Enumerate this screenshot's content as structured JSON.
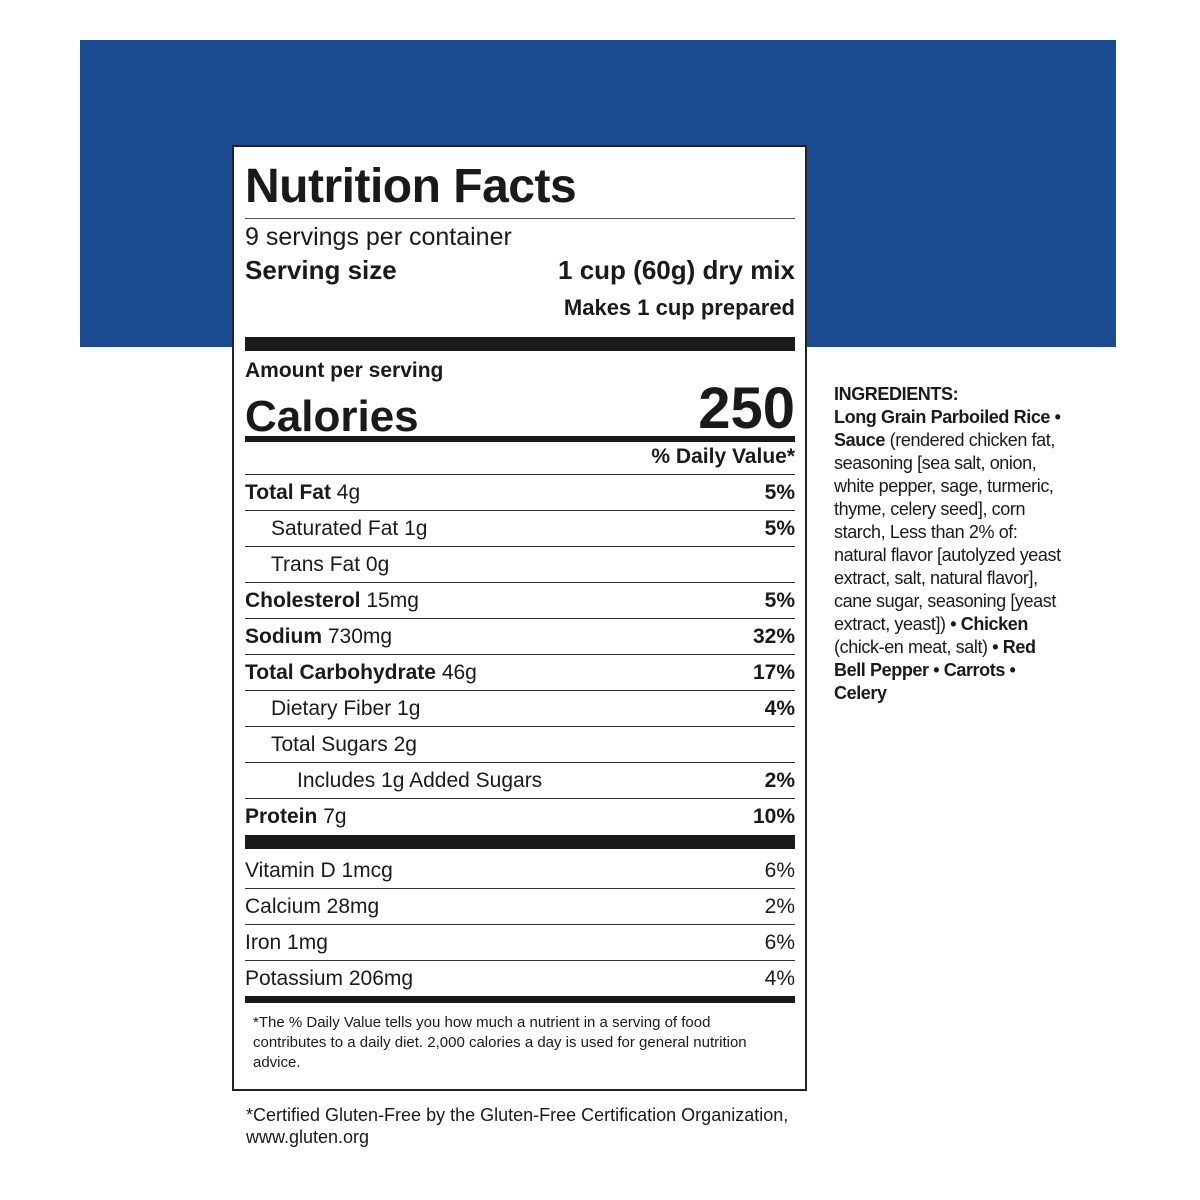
{
  "colors": {
    "banner": "#1a4a8f",
    "text": "#1a1a1a"
  },
  "label": {
    "title": "Nutrition Facts",
    "servings": "9 servings per container",
    "serving_size_label": "Serving size",
    "serving_size_value": "1 cup (60g) dry mix",
    "makes": "Makes 1 cup prepared",
    "amount_per_serving": "Amount per serving",
    "calories_label": "Calories",
    "calories_value": "250",
    "daily_value_header": "% Daily Value*",
    "nutrients": [
      {
        "name": "Total Fat",
        "amount": "4g",
        "dv": "5%",
        "bold": true,
        "indent": 0
      },
      {
        "name": "Saturated Fat",
        "amount": "1g",
        "dv": "5%",
        "bold": false,
        "indent": 1
      },
      {
        "name": "Trans Fat",
        "amount": "0g",
        "dv": "",
        "bold": false,
        "indent": 1
      },
      {
        "name": "Cholesterol",
        "amount": "15mg",
        "dv": "5%",
        "bold": true,
        "indent": 0
      },
      {
        "name": "Sodium",
        "amount": "730mg",
        "dv": "32%",
        "bold": true,
        "indent": 0
      },
      {
        "name": "Total Carbohydrate",
        "amount": "46g",
        "dv": "17%",
        "bold": true,
        "indent": 0
      },
      {
        "name": "Dietary Fiber",
        "amount": "1g",
        "dv": "4%",
        "bold": false,
        "indent": 1
      },
      {
        "name": "Total Sugars",
        "amount": "2g",
        "dv": "",
        "bold": false,
        "indent": 1
      },
      {
        "name": "Includes 1g Added Sugars",
        "amount": "",
        "dv": "2%",
        "bold": false,
        "indent": 2
      },
      {
        "name": "Protein",
        "amount": "7g",
        "dv": "10%",
        "bold": true,
        "indent": 0
      }
    ],
    "vitamins": [
      {
        "name": "Vitamin D 1mcg",
        "dv": "6%"
      },
      {
        "name": "Calcium 28mg",
        "dv": "2%"
      },
      {
        "name": "Iron 1mg",
        "dv": "6%"
      },
      {
        "name": "Potassium 206mg",
        "dv": "4%"
      }
    ],
    "footnote": "*The % Daily Value tells you how much a nutrient in a serving of food contributes to a daily diet. 2,000 calories a day is used for general nutrition advice."
  },
  "gluten_free": "*Certified Gluten-Free by the Gluten-Free Certification Organization, www.gluten.org",
  "ingredients": {
    "heading": "INGREDIENTS:",
    "parts": [
      {
        "t": "Long Grain Parboiled Rice",
        "b": true
      },
      {
        "t": " • ",
        "b": true
      },
      {
        "t": "Sauce",
        "b": true
      },
      {
        "t": " (rendered chicken fat, seasoning [sea salt, onion, white pepper, sage, turmeric, thyme, celery seed], corn starch, Less than 2% of: natural flavor [autolyzed yeast extract, salt, natural flavor], cane sugar, seasoning [yeast extract, yeast]) ",
        "b": false
      },
      {
        "t": "• Chicken",
        "b": true
      },
      {
        "t": " (chick-en meat, salt) ",
        "b": false
      },
      {
        "t": "• Red Bell Pepper • Carrots • Celery",
        "b": true
      }
    ]
  }
}
